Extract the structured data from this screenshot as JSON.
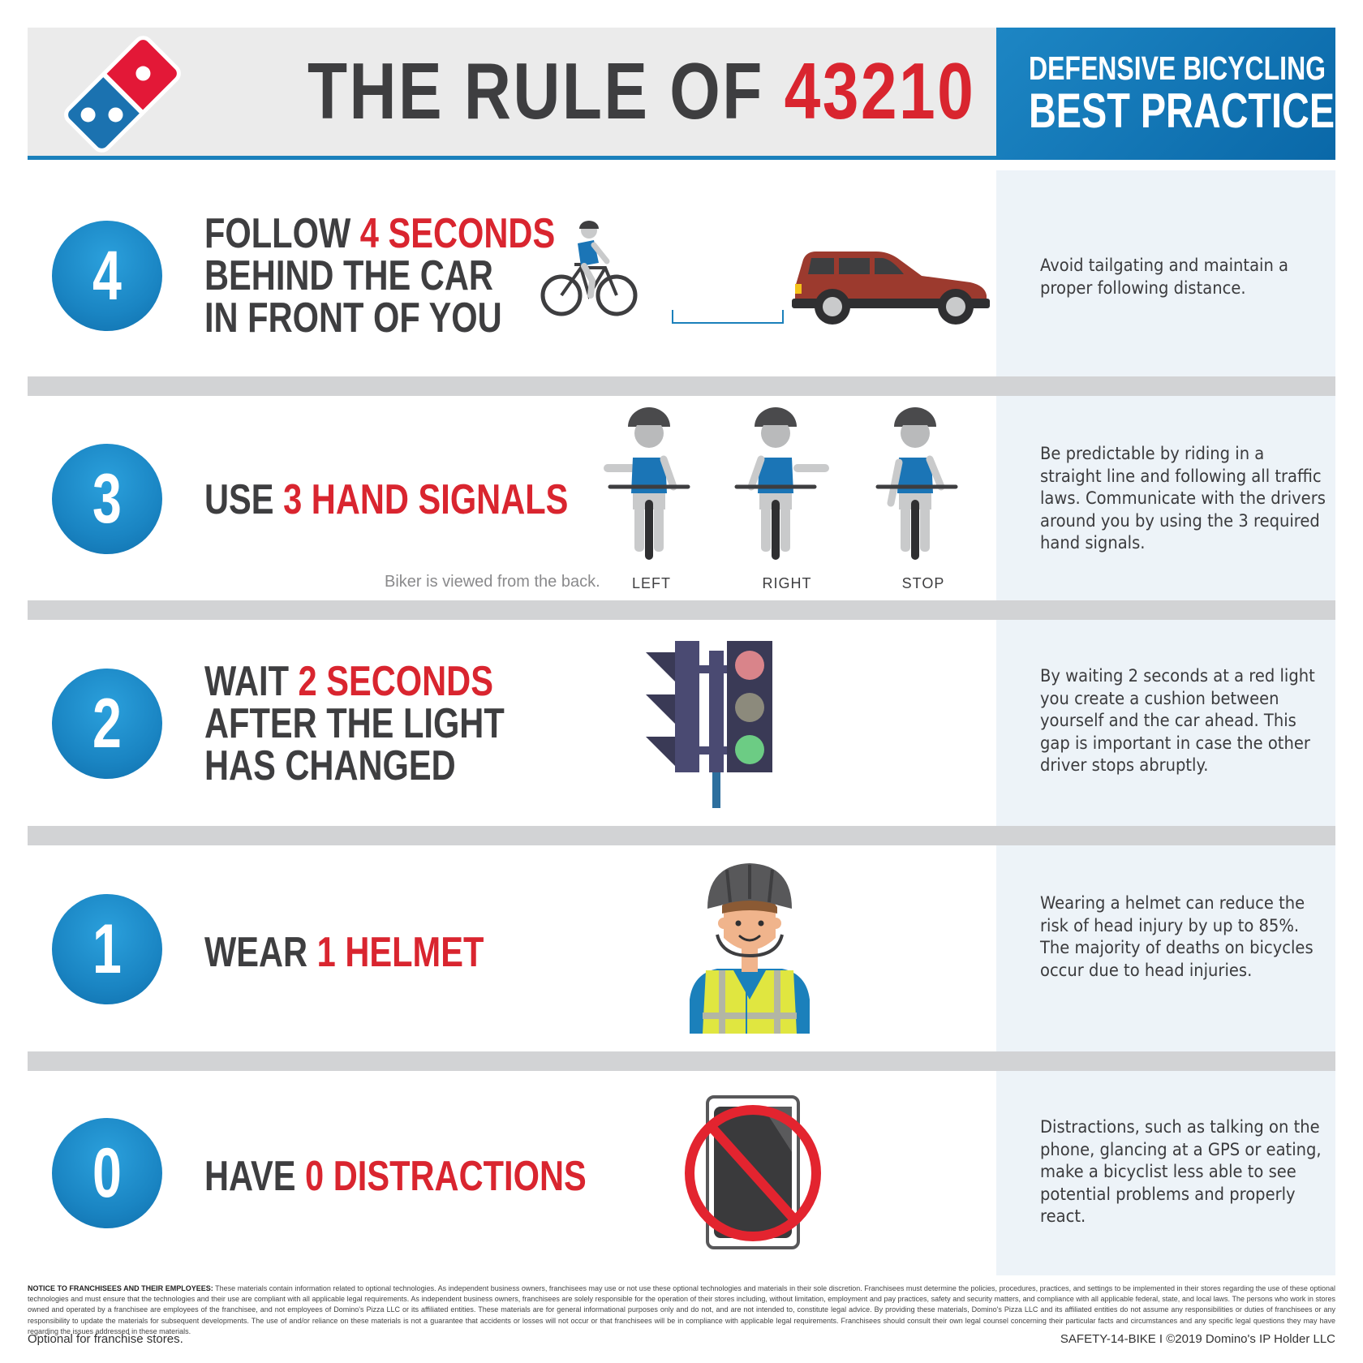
{
  "header": {
    "title_prefix": "THE RULE OF ",
    "title_number": "43210",
    "side_line1": "DEFENSIVE BICYCLING",
    "side_line2": "BEST PRACTICES"
  },
  "rules": [
    {
      "number": "4",
      "headline": [
        "FOLLOW ",
        "4 SECONDS",
        "BEHIND THE CAR",
        "IN FRONT OF YOU"
      ],
      "description": "Avoid tailgating and maintain a proper following distance."
    },
    {
      "number": "3",
      "headline": [
        "USE ",
        "3 HAND SIGNALS"
      ],
      "caption": "Biker is viewed from the back.",
      "signals": [
        "LEFT",
        "RIGHT",
        "STOP"
      ],
      "description": "Be predictable by riding in a straight line and following all traffic laws. Communicate with the drivers around you by using the 3 required hand signals."
    },
    {
      "number": "2",
      "headline": [
        "WAIT ",
        "2 SECONDS",
        "AFTER THE LIGHT",
        "HAS CHANGED"
      ],
      "description": "By waiting 2 seconds at a red light you create a cushion between yourself and the car ahead. This gap is important in case the other driver stops abruptly."
    },
    {
      "number": "1",
      "headline": [
        "WEAR ",
        "1 HELMET"
      ],
      "description": "Wearing a helmet can reduce the risk of head injury by up to 85%. The majority of deaths on bicycles occur due to head injuries."
    },
    {
      "number": "0",
      "headline": [
        "HAVE ",
        "0 DISTRACTIONS"
      ],
      "description": "Distractions, such as talking on the phone, glancing at a GPS or eating, make a bicyclist less able to see potential problems and properly react."
    }
  ],
  "footer": {
    "notice_title": "NOTICE TO FRANCHISEES AND THEIR EMPLOYEES:",
    "notice_body": "These materials contain information related to optional technologies. As independent business owners, franchisees may use or not use these optional technologies and materials in their sole discretion. Franchisees must determine the policies, procedures, practices, and settings to be implemented in their stores regarding the use of these optional technologies and must ensure that the technologies and their use are compliant with all applicable legal requirements. As independent business owners, franchisees are solely responsible for the operation of their stores including, without limitation, employment and pay practices, safety and security matters, and compliance with all applicable federal, state, and local laws. The persons who work in stores owned and operated by a franchisee are employees of the franchisee, and not employees of Domino's Pizza LLC or its affiliated entities. These materials are for general informational purposes only and do not, and are not intended to, constitute legal advice. By providing these materials, Domino's Pizza LLC and its affiliated entities do not assume any responsibilities or duties of franchisees or any responsibility to update the materials for subsequent developments. The use of and/or reliance on these materials is not a guarantee that accidents or losses will not occur or that franchisees will be in compliance with applicable legal requirements. Franchisees should consult their own legal counsel concerning their particular facts and circumstances and any specific legal questions they may have regarding the issues addressed in these materials.",
    "left": "Optional for franchise stores.",
    "right": "SAFETY-14-BIKE I ©2019 Domino's IP Holder LLC"
  },
  "colors": {
    "brand_blue": "#1b80bb",
    "brand_red": "#d9252f",
    "dark_text": "#3e3e40"
  },
  "icons": [
    "dominos-logo-icon",
    "cyclist-icon",
    "car-icon",
    "signal-left-icon",
    "signal-right-icon",
    "signal-stop-icon",
    "traffic-light-icon",
    "helmet-rider-icon",
    "no-phone-icon"
  ]
}
